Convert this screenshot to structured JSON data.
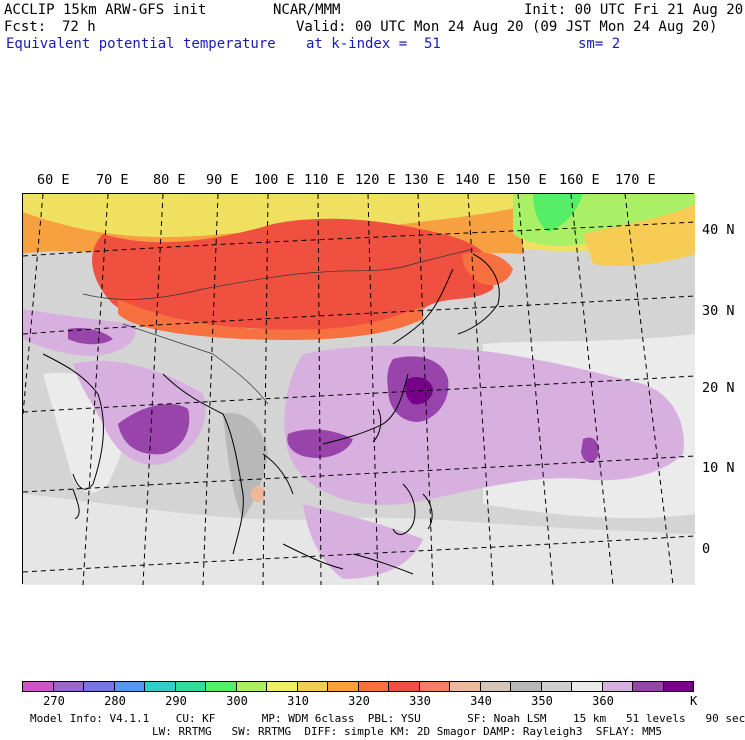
{
  "header": {
    "model": "ACCLIP 15km ARW-GFS init",
    "center": "NCAR/MMM",
    "init": "Init: 00 UTC Fri 21 Aug 20",
    "fcst_label": "Fcst:",
    "fcst_value": "72 h",
    "valid": "Valid: 00 UTC Mon 24 Aug 20 (09 JST Mon 24 Aug 20)",
    "field": "Equivalent potential temperature",
    "level": "at k-index =  51",
    "smooth": "sm= 2"
  },
  "map": {
    "region": "East Asia / Western Pacific",
    "longitude_labels": [
      "60 E",
      "70 E",
      "80 E",
      "90 E",
      "100 E",
      "110 E",
      "120 E",
      "130 E",
      "140 E",
      "150 E",
      "160 E",
      "170 E"
    ],
    "latitude_labels": [
      "40 N",
      "30 N",
      "20 N",
      "10 N",
      "0"
    ]
  },
  "colorbar": {
    "colors": [
      "#cc55cc",
      "#9966cc",
      "#7777dd",
      "#5599ee",
      "#33cccc",
      "#33dd99",
      "#55ee66",
      "#aaf066",
      "#f0f066",
      "#f6cc55",
      "#f7a040",
      "#f77040",
      "#f05040",
      "#f38060",
      "#f0b898",
      "#d7c6b8",
      "#b8b8b8",
      "#d0d0d0",
      "#ebebeb",
      "#d8b0e0",
      "#9944aa",
      "#770088"
    ],
    "tick_labels": [
      "270",
      "280",
      "290",
      "300",
      "310",
      "320",
      "330",
      "340",
      "350",
      "360"
    ],
    "unit": "K"
  },
  "model_info": {
    "line1": "Model Info: V4.1.1    CU: KF       MP: WDM 6class  PBL: YSU       SF: Noah LSM    15 km   51 levels   90 sec",
    "line2": "LW: RRTMG   SW: RRTMG  DIFF: simple KM: 2D Smagor DAMP: Rayleigh3  SFLAY: MM5"
  }
}
